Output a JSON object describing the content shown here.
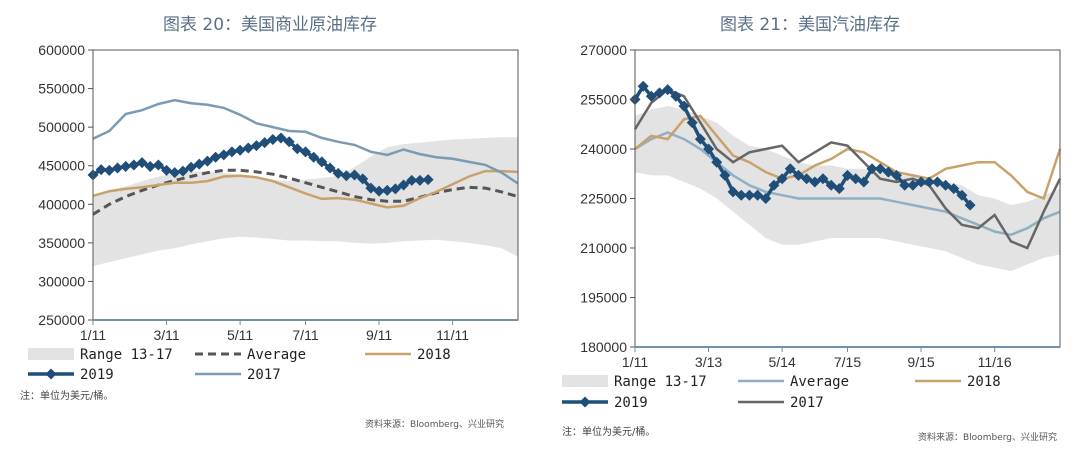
{
  "chart_data": [
    {
      "type": "line",
      "title": "图表 20：美国商业原油库存",
      "note": "注：单位为美元/桶。",
      "source": "资料来源：Bloomberg、兴业研究",
      "ylim": [
        250000,
        600000
      ],
      "yticks": [
        600000,
        550000,
        500000,
        450000,
        400000,
        350000,
        300000,
        250000
      ],
      "xlim": [
        1,
        53
      ],
      "xticks": [
        {
          "label": "1/11",
          "x": 1
        },
        {
          "label": "3/11",
          "x": 10
        },
        {
          "label": "5/11",
          "x": 19
        },
        {
          "label": "7/11",
          "x": 27
        },
        {
          "label": "9/11",
          "x": 36
        },
        {
          "label": "11/11",
          "x": 45
        }
      ],
      "legend": [
        {
          "label": "Range 13-17",
          "style": "band"
        },
        {
          "label": "Average",
          "style": "dash"
        },
        {
          "label": "2018",
          "style": "line"
        },
        {
          "label": "2019",
          "style": "diamond"
        },
        {
          "label": "2017",
          "style": "line"
        }
      ],
      "legend_rows": [
        [
          "Range 13-17",
          "Average",
          "2018"
        ],
        [
          "2019",
          "2017"
        ]
      ],
      "range": {
        "name": "Range 13-17",
        "x": [
          1,
          3,
          5,
          7,
          9,
          11,
          13,
          15,
          17,
          19,
          21,
          23,
          25,
          27,
          29,
          31,
          33,
          35,
          37,
          39,
          41,
          43,
          45,
          47,
          49,
          51,
          53
        ],
        "low": [
          320000,
          325000,
          330000,
          335000,
          340000,
          343000,
          348000,
          352000,
          356000,
          358000,
          357000,
          355000,
          353000,
          353000,
          352000,
          352000,
          350000,
          349000,
          350000,
          352000,
          353000,
          354000,
          352000,
          350000,
          347000,
          343000,
          332000
        ],
        "high": [
          412000,
          418000,
          423000,
          430000,
          436000,
          440000,
          442000,
          443000,
          441000,
          438000,
          435000,
          432000,
          430000,
          432000,
          434000,
          437000,
          448000,
          462000,
          474000,
          478000,
          480000,
          482000,
          484000,
          485000,
          486000,
          487000,
          487000
        ]
      },
      "series": [
        {
          "name": "Average",
          "color": "#555555",
          "style": "dash",
          "x": [
            1,
            3,
            5,
            7,
            9,
            11,
            13,
            15,
            17,
            19,
            21,
            23,
            25,
            27,
            29,
            31,
            33,
            35,
            37,
            39,
            41,
            43,
            45,
            47,
            49,
            51,
            53
          ],
          "values": [
            387000,
            400000,
            410000,
            418000,
            425000,
            431000,
            436000,
            441000,
            444000,
            444000,
            442000,
            439000,
            434000,
            428000,
            422000,
            416000,
            410000,
            406000,
            404000,
            404000,
            409000,
            415000,
            419000,
            422000,
            421000,
            416000,
            410000
          ]
        },
        {
          "name": "2018",
          "color": "#c9a26b",
          "style": "line",
          "x": [
            1,
            3,
            5,
            7,
            9,
            11,
            13,
            15,
            17,
            19,
            21,
            23,
            25,
            27,
            29,
            31,
            33,
            35,
            37,
            39,
            41,
            43,
            45,
            47,
            49,
            51,
            53
          ],
          "values": [
            411000,
            417000,
            420000,
            422000,
            425000,
            428000,
            428000,
            430000,
            436000,
            437000,
            435000,
            430000,
            422000,
            414000,
            407000,
            408000,
            406000,
            401000,
            396000,
            398000,
            408000,
            416000,
            426000,
            436000,
            443000,
            443000,
            442000
          ]
        },
        {
          "name": "2017",
          "color": "#7a9bb2",
          "style": "line",
          "x": [
            1,
            3,
            5,
            7,
            9,
            11,
            13,
            15,
            17,
            19,
            21,
            23,
            25,
            27,
            29,
            31,
            33,
            35,
            37,
            39,
            41,
            43,
            45,
            47,
            49,
            51,
            53
          ],
          "values": [
            485000,
            495000,
            517000,
            522000,
            530000,
            535000,
            531000,
            529000,
            525000,
            516000,
            505000,
            500000,
            495000,
            494000,
            486000,
            481000,
            477000,
            468000,
            464000,
            471000,
            465000,
            461000,
            459000,
            455000,
            451000,
            441000,
            427000
          ]
        },
        {
          "name": "2019",
          "color": "#1f4e79",
          "style": "diamond",
          "x": [
            1,
            2,
            3,
            4,
            5,
            6,
            7,
            8,
            9,
            10,
            11,
            12,
            13,
            14,
            15,
            16,
            17,
            18,
            19,
            20,
            21,
            22,
            23,
            24,
            25,
            26,
            27,
            28,
            29,
            30,
            31,
            32,
            33,
            34,
            35,
            36,
            37,
            38,
            39,
            40,
            41,
            42
          ],
          "values": [
            438000,
            445000,
            444000,
            447000,
            449000,
            451000,
            454000,
            449000,
            451000,
            444000,
            441000,
            443000,
            448000,
            452000,
            456000,
            461000,
            464000,
            468000,
            470000,
            473000,
            476000,
            480000,
            484000,
            486000,
            481000,
            472000,
            468000,
            461000,
            455000,
            447000,
            440000,
            437000,
            438000,
            433000,
            421000,
            417000,
            418000,
            420000,
            425000,
            431000,
            431000,
            432000
          ]
        }
      ]
    },
    {
      "type": "line",
      "title": "图表 21：美国汽油库存",
      "note": "注：单位为美元/桶。",
      "source": "资料来源：Bloomberg、兴业研究",
      "ylim": [
        180000,
        270000
      ],
      "yticks": [
        270000,
        255000,
        240000,
        225000,
        210000,
        195000,
        180000
      ],
      "xlim": [
        1,
        53
      ],
      "xticks": [
        {
          "label": "1/11",
          "x": 1
        },
        {
          "label": "3/13",
          "x": 10
        },
        {
          "label": "5/14",
          "x": 19
        },
        {
          "label": "7/15",
          "x": 27
        },
        {
          "label": "9/15",
          "x": 36
        },
        {
          "label": "11/16",
          "x": 45
        }
      ],
      "legend": [
        {
          "label": "Range 13-17",
          "style": "band"
        },
        {
          "label": "Average",
          "style": "line"
        },
        {
          "label": "2018",
          "style": "line"
        },
        {
          "label": "2019",
          "style": "diamond"
        },
        {
          "label": "2017",
          "style": "line"
        }
      ],
      "legend_rows": [
        [
          "Range 13-17",
          "Average",
          "2018"
        ],
        [
          "2019",
          "2017"
        ]
      ],
      "range": {
        "name": "Range 13-17",
        "x": [
          1,
          3,
          5,
          7,
          9,
          11,
          13,
          15,
          17,
          19,
          21,
          23,
          25,
          27,
          29,
          31,
          33,
          35,
          37,
          39,
          41,
          43,
          45,
          47,
          49,
          51,
          53
        ],
        "low": [
          233000,
          232000,
          232000,
          230000,
          228000,
          225000,
          221000,
          217000,
          213000,
          211000,
          211000,
          212000,
          213000,
          213000,
          213000,
          213000,
          212000,
          211000,
          210000,
          209000,
          207000,
          205000,
          204000,
          203000,
          205000,
          207000,
          208000
        ],
        "high": [
          250000,
          252000,
          253000,
          252000,
          250000,
          248000,
          244000,
          241000,
          240000,
          238000,
          236000,
          235000,
          235000,
          234000,
          234000,
          233000,
          232000,
          232000,
          231000,
          230000,
          229000,
          226000,
          225000,
          223000,
          224000,
          226000,
          228000
        ]
      },
      "series": [
        {
          "name": "Average",
          "color": "#8fb0c4",
          "style": "line",
          "x": [
            1,
            3,
            5,
            7,
            9,
            11,
            13,
            15,
            17,
            19,
            21,
            23,
            25,
            27,
            29,
            31,
            33,
            35,
            37,
            39,
            41,
            43,
            45,
            47,
            49,
            51,
            53
          ],
          "values": [
            240000,
            243000,
            245000,
            243000,
            240000,
            236000,
            232000,
            229000,
            227000,
            226000,
            225000,
            225000,
            225000,
            225000,
            225000,
            225000,
            224000,
            223000,
            222000,
            221000,
            219000,
            217000,
            215000,
            214000,
            216000,
            219000,
            221000
          ]
        },
        {
          "name": "2018",
          "color": "#c9a26b",
          "style": "line",
          "x": [
            1,
            3,
            5,
            7,
            9,
            11,
            13,
            15,
            17,
            19,
            21,
            23,
            25,
            27,
            29,
            31,
            33,
            35,
            37,
            39,
            41,
            43,
            45,
            47,
            49,
            51,
            53
          ],
          "values": [
            240000,
            244000,
            243000,
            249000,
            250000,
            244000,
            238000,
            236000,
            233000,
            231000,
            232000,
            235000,
            237000,
            240000,
            239000,
            236000,
            233000,
            232000,
            231000,
            234000,
            235000,
            236000,
            236000,
            232000,
            227000,
            225000,
            240000
          ]
        },
        {
          "name": "2017",
          "color": "#666666",
          "style": "line",
          "x": [
            1,
            3,
            5,
            7,
            9,
            11,
            13,
            15,
            17,
            19,
            21,
            23,
            25,
            27,
            29,
            31,
            33,
            35,
            37,
            39,
            41,
            43,
            45,
            47,
            49,
            51,
            53
          ],
          "values": [
            246000,
            254000,
            258000,
            256000,
            248000,
            240000,
            236000,
            239000,
            240000,
            241000,
            236000,
            239000,
            242000,
            241000,
            236000,
            231000,
            230000,
            231000,
            229000,
            222000,
            217000,
            216000,
            220000,
            212000,
            210000,
            221000,
            231000
          ]
        },
        {
          "name": "2019",
          "color": "#1f4e79",
          "style": "diamond",
          "x": [
            1,
            2,
            3,
            4,
            5,
            6,
            7,
            8,
            9,
            10,
            11,
            12,
            13,
            14,
            15,
            16,
            17,
            18,
            19,
            20,
            21,
            22,
            23,
            24,
            25,
            26,
            27,
            28,
            29,
            30,
            31,
            32,
            33,
            34,
            35,
            36,
            37,
            38,
            39,
            40,
            41,
            42
          ],
          "values": [
            255000,
            259000,
            256000,
            257000,
            258000,
            256000,
            253000,
            248000,
            243000,
            240000,
            236000,
            232000,
            227000,
            226000,
            226000,
            226000,
            225000,
            229000,
            231000,
            234000,
            232000,
            231000,
            230000,
            231000,
            229000,
            228000,
            232000,
            231000,
            230000,
            234000,
            234000,
            233000,
            232000,
            229000,
            229000,
            230000,
            230000,
            230000,
            229000,
            228000,
            226000,
            223000
          ]
        }
      ]
    }
  ],
  "colors": {
    "title": "#5a6f86",
    "band": "#e3e3e3",
    "axis": "#6f90a8",
    "frame": "#555555"
  }
}
